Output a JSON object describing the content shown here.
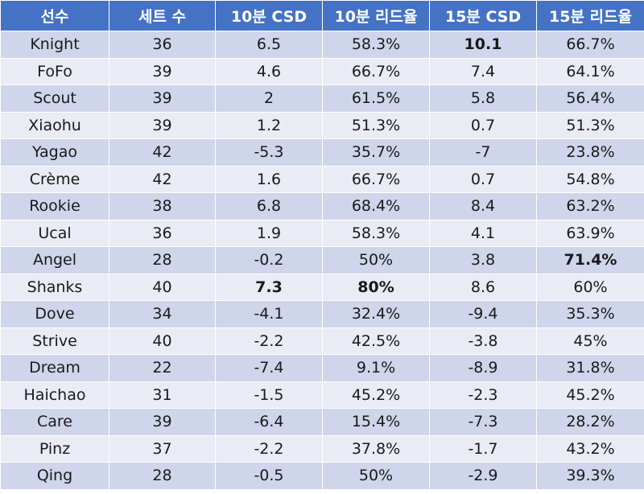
{
  "table": {
    "headers": [
      "선수",
      "세트 수",
      "10분 CSD",
      "10분 리드율",
      "15분 CSD",
      "15분 리드율"
    ],
    "rows": [
      [
        "Knight",
        "36",
        "6.5",
        "58.3%",
        "10.1",
        "66.7%"
      ],
      [
        "FoFo",
        "39",
        "4.6",
        "66.7%",
        "7.4",
        "64.1%"
      ],
      [
        "Scout",
        "39",
        "2",
        "61.5%",
        "5.8",
        "56.4%"
      ],
      [
        "Xiaohu",
        "39",
        "1.2",
        "51.3%",
        "0.7",
        "51.3%"
      ],
      [
        "Yagao",
        "42",
        "-5.3",
        "35.7%",
        "-7",
        "23.8%"
      ],
      [
        "Crème",
        "42",
        "1.6",
        "66.7%",
        "0.7",
        "54.8%"
      ],
      [
        "Rookie",
        "38",
        "6.8",
        "68.4%",
        "8.4",
        "63.2%"
      ],
      [
        "Ucal",
        "36",
        "1.9",
        "58.3%",
        "4.1",
        "63.9%"
      ],
      [
        "Angel",
        "28",
        "-0.2",
        "50%",
        "3.8",
        "71.4%"
      ],
      [
        "Shanks",
        "40",
        "7.3",
        "80%",
        "8.6",
        "60%"
      ],
      [
        "Dove",
        "34",
        "-4.1",
        "32.4%",
        "-9.4",
        "35.3%"
      ],
      [
        "Strive",
        "40",
        "-2.2",
        "42.5%",
        "-3.8",
        "45%"
      ],
      [
        "Dream",
        "22",
        "-7.4",
        "9.1%",
        "-8.9",
        "31.8%"
      ],
      [
        "Haichao",
        "31",
        "-1.5",
        "45.2%",
        "-2.3",
        "45.2%"
      ],
      [
        "Care",
        "39",
        "-6.4",
        "15.4%",
        "-7.3",
        "28.2%"
      ],
      [
        "Pinz",
        "37",
        "-2.2",
        "37.8%",
        "-1.7",
        "43.2%"
      ],
      [
        "Qing",
        "28",
        "-0.5",
        "50%",
        "-2.9",
        "39.3%"
      ]
    ],
    "bold_cells": [
      [
        0,
        4
      ],
      [
        8,
        5
      ],
      [
        9,
        2
      ],
      [
        9,
        3
      ]
    ]
  },
  "colors": {
    "header_bg": "#4472c4",
    "header_text": "#ffffff",
    "row_dark": "#cfd5ea",
    "row_light": "#e9ebf5"
  }
}
